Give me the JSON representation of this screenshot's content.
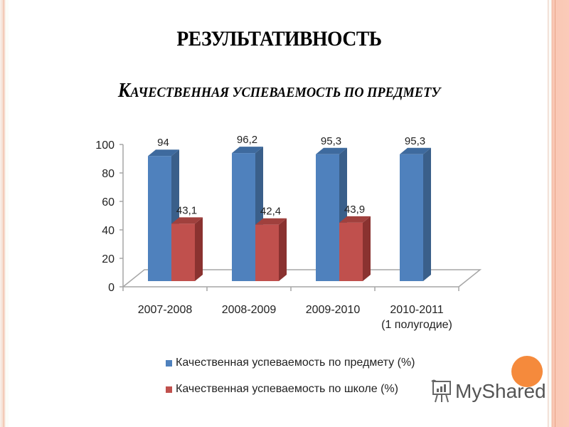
{
  "slide": {
    "title": "РЕЗУЛЬТАТИВНОСТЬ",
    "subtitle_first_letter": "К",
    "subtitle_rest": "АЧЕСТВЕННАЯ УСПЕВАЕМОСТЬ ПО ПРЕДМЕТУ"
  },
  "chart_data": {
    "type": "bar",
    "title": "Качественная успеваемость по предмету",
    "categories": [
      "2007-2008",
      "2008-2009",
      "2009-2010",
      "2010-2011 (1 полугодие)"
    ],
    "category_lines": [
      [
        "2007-2008"
      ],
      [
        "2008-2009"
      ],
      [
        "2009-2010"
      ],
      [
        "2010-2011",
        "(1 полугодие)"
      ]
    ],
    "series": [
      {
        "name": "Качественная успеваемость по предмету (%)",
        "color": "#4f81bd",
        "values": [
          94,
          96.2,
          95.3,
          95.3
        ],
        "labels": [
          "94",
          "96,2",
          "95,3",
          "95,3"
        ]
      },
      {
        "name": "Качественная успеваемость по школе (%)",
        "color": "#c0504d",
        "values": [
          43.1,
          42.4,
          43.9,
          null
        ],
        "labels": [
          "43,1",
          "42,4",
          "43,9",
          ""
        ]
      }
    ],
    "yticks": [
      "0",
      "20",
      "40",
      "60",
      "80",
      "100"
    ],
    "ylim": [
      0,
      100
    ],
    "xlabel": "",
    "ylabel": "",
    "grid": false,
    "legend_position": "bottom",
    "style": "3d-clustered-column"
  },
  "legend": {
    "items": [
      {
        "label": "Качественная успеваемость по предмету (%)",
        "color": "#4f81bd"
      },
      {
        "label": "Качественная успеваемость по школе (%)",
        "color": "#c0504d"
      }
    ]
  },
  "watermark": {
    "text": "MyShared",
    "dot_color": "#f58a3c"
  }
}
